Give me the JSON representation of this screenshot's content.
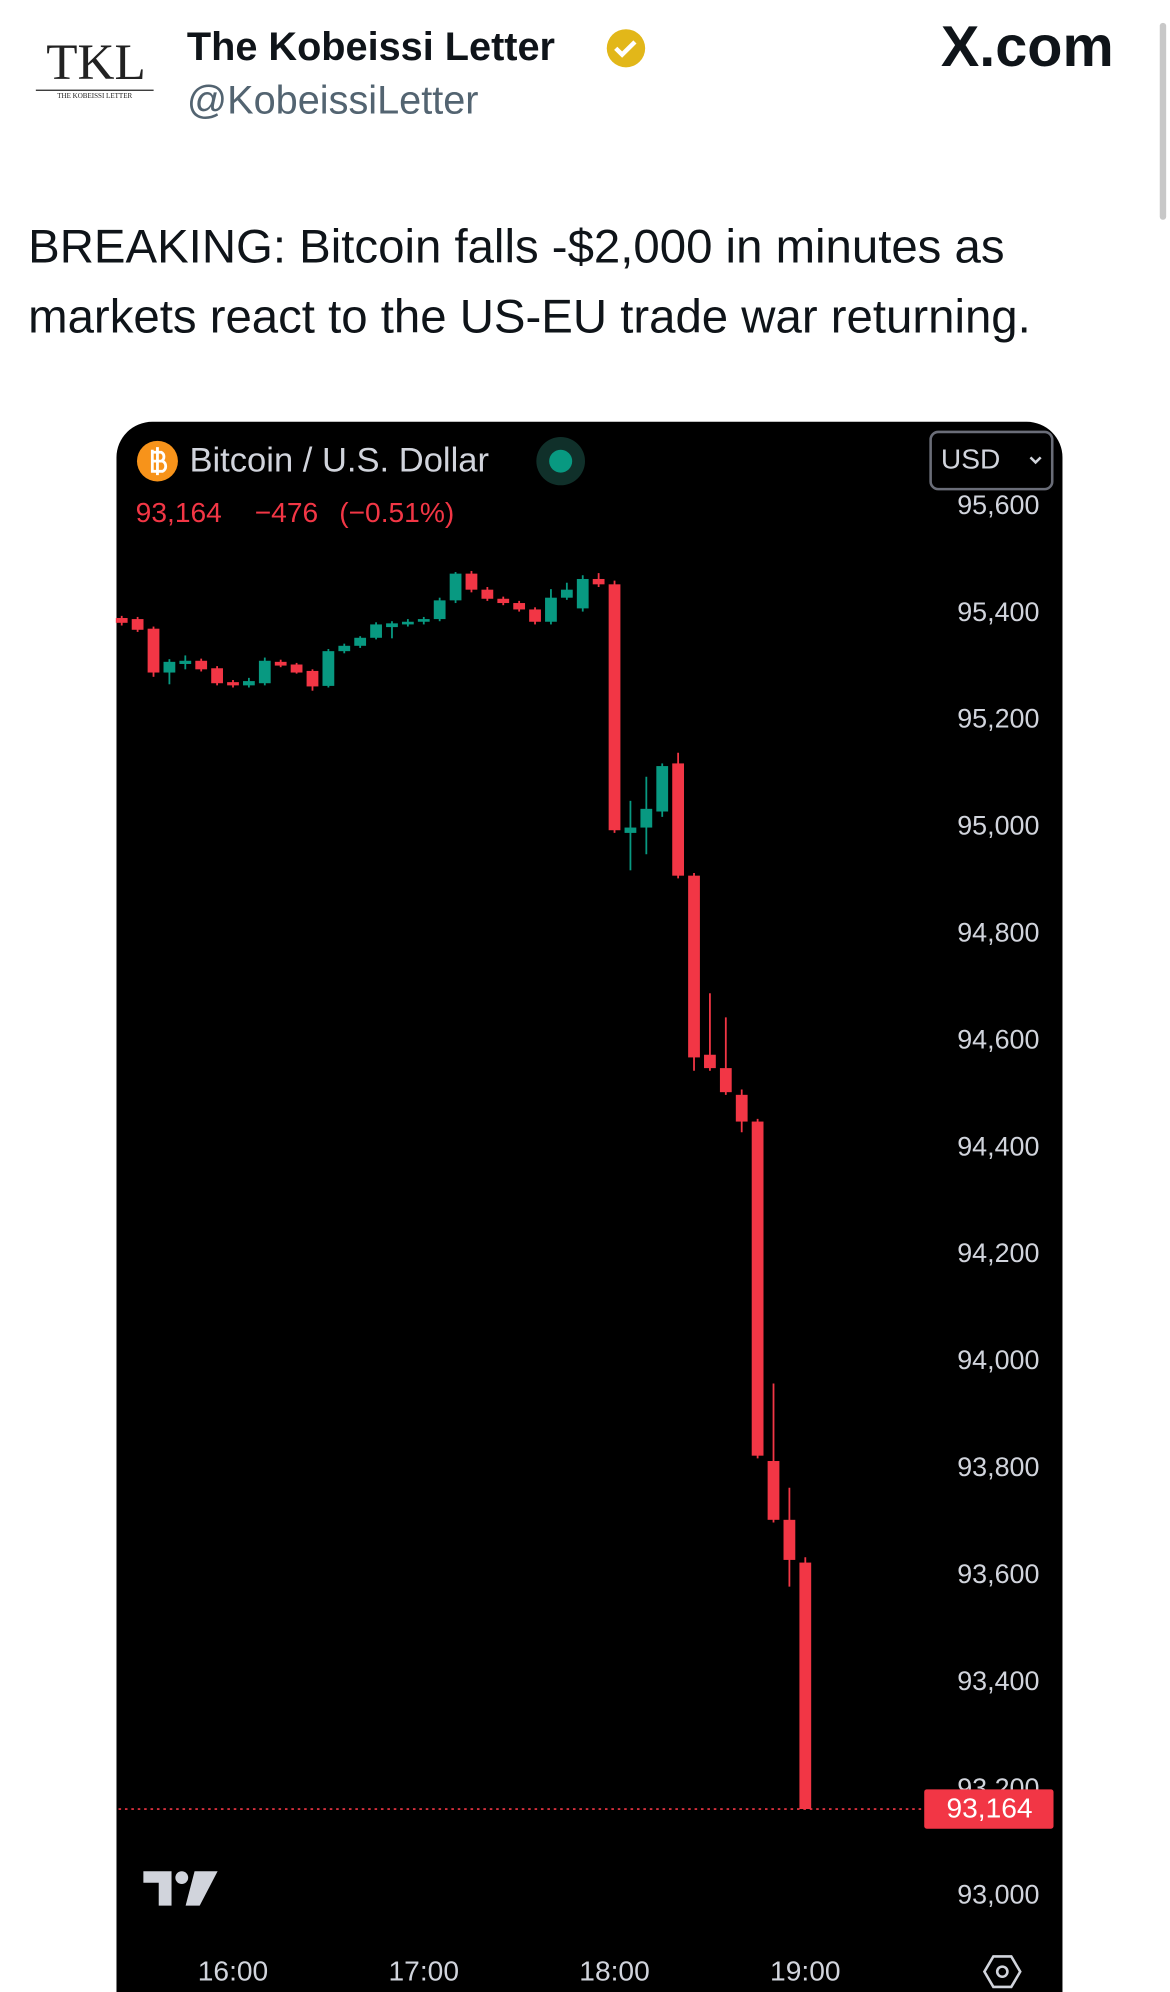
{
  "header": {
    "logo": "TKL",
    "logo_subtitle": "THE KOBEISSI LETTER",
    "name": "The Kobeissi Letter",
    "handle": "@KobeissiLetter",
    "site": "X.com"
  },
  "tweet": {
    "lines": [
      "BREAKING: Bitcoin falls -$2,000 in minutes as",
      "markets react to the US-EU trade war returning."
    ]
  },
  "chart_data": {
    "type": "candlestick",
    "title": "Bitcoin / U.S. Dollar",
    "currency": "USD",
    "last_price": {
      "value": 93164,
      "label": "93,164"
    },
    "change": "−476",
    "change_pct": "(−0.51%)",
    "up_color": "#089981",
    "down_color": "#f23645",
    "x": [
      "15:25",
      "15:30",
      "15:35",
      "15:40",
      "15:45",
      "15:50",
      "15:55",
      "16:00",
      "16:05",
      "16:10",
      "16:15",
      "16:20",
      "16:25",
      "16:30",
      "16:35",
      "16:40",
      "16:45",
      "16:50",
      "16:55",
      "17:00",
      "17:05",
      "17:10",
      "17:15",
      "17:20",
      "17:25",
      "17:30",
      "17:35",
      "17:40",
      "17:45",
      "17:50",
      "17:55",
      "18:00",
      "18:05",
      "18:10",
      "18:15",
      "18:20",
      "18:25",
      "18:30",
      "18:35",
      "18:40",
      "18:45",
      "18:50",
      "18:55",
      "19:00"
    ],
    "open": [
      95392,
      95390,
      95372,
      95290,
      95306,
      95312,
      95298,
      95272,
      95266,
      95270,
      95310,
      95305,
      95293,
      95265,
      95330,
      95340,
      95355,
      95375,
      95380,
      95385,
      95390,
      95425,
      95475,
      95445,
      95428,
      95420,
      95408,
      95385,
      95430,
      95410,
      95465,
      95455,
      94990,
      95000,
      95030,
      95120,
      94910,
      94575,
      94550,
      94500,
      94450,
      93815,
      93705,
      93625
    ],
    "high": [
      95396,
      95394,
      95376,
      95315,
      95322,
      95316,
      95302,
      95276,
      95280,
      95318,
      95314,
      95308,
      95296,
      95334,
      95344,
      95358,
      95384,
      95386,
      95390,
      95394,
      95430,
      95478,
      95480,
      95450,
      95432,
      95424,
      95412,
      95446,
      95458,
      95472,
      95476,
      95462,
      95050,
      95095,
      95120,
      95140,
      94915,
      94690,
      94645,
      94510,
      94455,
      93960,
      93765,
      93635
    ],
    "low": [
      95378,
      95366,
      95282,
      95268,
      95296,
      95292,
      95266,
      95262,
      95262,
      95266,
      95300,
      95288,
      95256,
      95262,
      95326,
      95336,
      95352,
      95354,
      95376,
      95380,
      95386,
      95420,
      95440,
      95424,
      95416,
      95404,
      95380,
      95380,
      95426,
      95404,
      95450,
      94990,
      94920,
      94950,
      95020,
      94905,
      94545,
      94545,
      94500,
      94430,
      93820,
      93700,
      93580,
      93164
    ],
    "close": [
      95383,
      95370,
      95290,
      95310,
      95312,
      95296,
      95270,
      95266,
      95274,
      95312,
      95303,
      95290,
      95264,
      95330,
      95340,
      95355,
      95380,
      95382,
      95385,
      95390,
      95425,
      95475,
      95445,
      95428,
      95420,
      95408,
      95385,
      95430,
      95445,
      95465,
      95455,
      94995,
      95000,
      95035,
      95115,
      94910,
      94570,
      94550,
      94505,
      94450,
      93825,
      93705,
      93630,
      93164
    ],
    "xlim": [
      "15:24",
      "19:37"
    ],
    "xticks": [
      "16:00",
      "17:00",
      "18:00",
      "19:00"
    ],
    "ylim": [
      92912,
      95626
    ],
    "yticks": [
      {
        "value": 93000,
        "label": "93,000"
      },
      {
        "value": 93200,
        "label": "93,200"
      },
      {
        "value": 93400,
        "label": "93,400"
      },
      {
        "value": 93600,
        "label": "93,600"
      },
      {
        "value": 93800,
        "label": "93,800"
      },
      {
        "value": 94000,
        "label": "94,000"
      },
      {
        "value": 94200,
        "label": "94,200"
      },
      {
        "value": 94400,
        "label": "94,400"
      },
      {
        "value": 94600,
        "label": "94,600"
      },
      {
        "value": 94800,
        "label": "94,800"
      },
      {
        "value": 95000,
        "label": "95,000"
      },
      {
        "value": 95200,
        "label": "95,200"
      },
      {
        "value": 95400,
        "label": "95,400"
      },
      {
        "value": 95600,
        "label": "95,600"
      }
    ]
  }
}
